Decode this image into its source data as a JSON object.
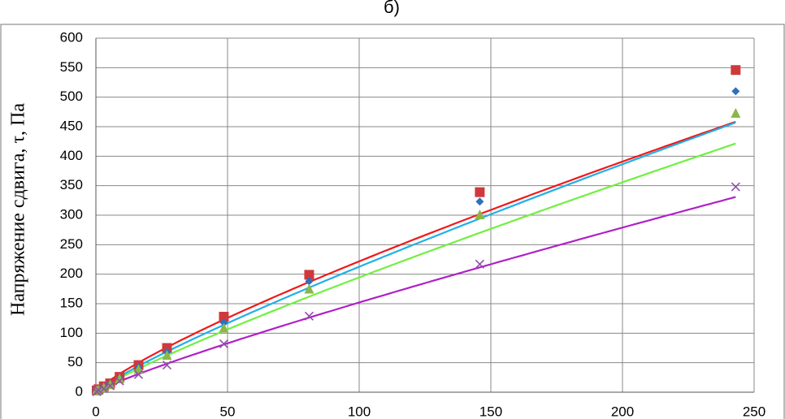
{
  "chart_data": {
    "type": "scatter",
    "title": "б)",
    "y_label": "Напряжение сдвига, τ, Па",
    "xlim": [
      0,
      250
    ],
    "xticks": [
      0,
      50,
      100,
      150,
      200,
      250
    ],
    "ylim": [
      0,
      600
    ],
    "yticks": [
      0,
      50,
      100,
      150,
      200,
      250,
      300,
      350,
      400,
      450,
      500,
      550,
      600
    ],
    "grid": true,
    "trendline": "power",
    "series": [
      {
        "marker": "square",
        "color": "#d0393b",
        "line_color": "#f01818",
        "x": [
          0.3,
          1,
          3,
          5.4,
          9,
          16.2,
          27,
          48.6,
          81,
          145.8,
          243
        ],
        "values": [
          3,
          5,
          10,
          15,
          26,
          46,
          75,
          128,
          199,
          339,
          546
        ]
      },
      {
        "marker": "diamond",
        "color": "#2e6fc0",
        "line_color": "#20b0e8",
        "x": [
          0.3,
          1,
          3,
          5.4,
          9,
          16.2,
          27,
          48.6,
          81,
          145.8,
          243
        ],
        "values": [
          2,
          4,
          8,
          14,
          24,
          42,
          68,
          118,
          188,
          323,
          510
        ]
      },
      {
        "marker": "triangle",
        "color": "#8ab848",
        "line_color": "#70f040",
        "x": [
          0.3,
          1,
          3,
          5.4,
          9,
          16.2,
          27,
          48.6,
          81,
          145.8,
          243
        ],
        "values": [
          2,
          3,
          7,
          12,
          22,
          38,
          62,
          108,
          174,
          300,
          472
        ]
      },
      {
        "marker": "x",
        "color": "#9050a8",
        "line_color": "#b020c8",
        "x": [
          0.3,
          1,
          3,
          5.4,
          9,
          16.2,
          27,
          48.6,
          81,
          145.8,
          243
        ],
        "values": [
          1,
          3,
          6,
          11,
          19,
          30,
          46,
          82,
          129,
          217,
          348
        ]
      }
    ]
  }
}
